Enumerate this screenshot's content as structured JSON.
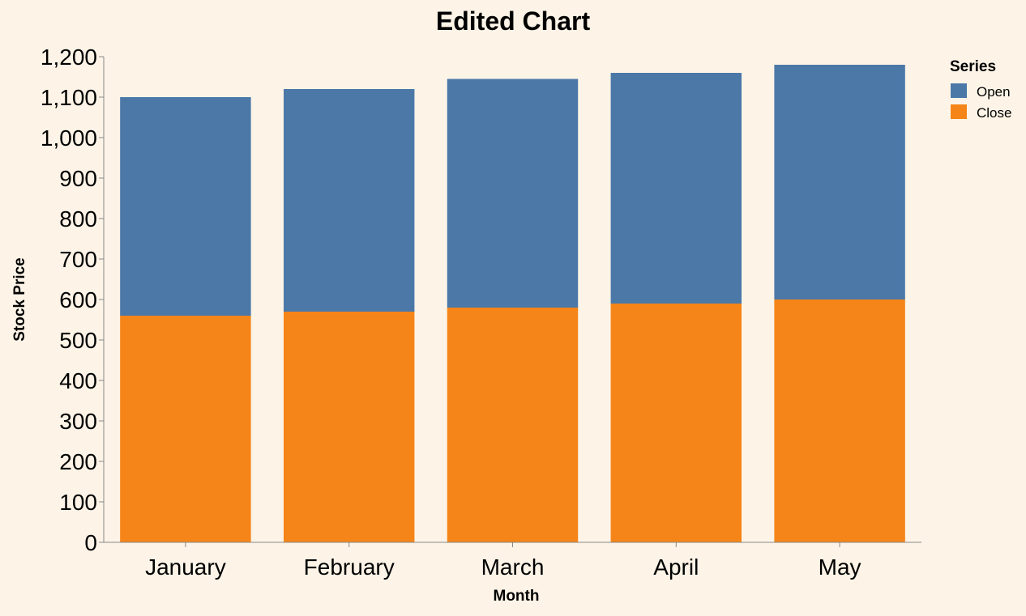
{
  "chart_data": {
    "type": "bar",
    "stacked": true,
    "title": "Edited Chart",
    "xlabel": "Month",
    "ylabel": "Stock Price",
    "categories": [
      "January",
      "February",
      "March",
      "April",
      "May"
    ],
    "series": [
      {
        "name": "Close",
        "values": [
          560,
          570,
          580,
          590,
          600
        ],
        "color": "#f58518"
      },
      {
        "name": "Open",
        "values": [
          540,
          550,
          565,
          570,
          580
        ],
        "color": "#4c78a8"
      }
    ],
    "ylim": [
      0,
      1200
    ],
    "yticks": [
      "0",
      "100",
      "200",
      "300",
      "400",
      "500",
      "600",
      "700",
      "800",
      "900",
      "1,000",
      "1,100",
      "1,200"
    ],
    "ytick_values": [
      0,
      100,
      200,
      300,
      400,
      500,
      600,
      700,
      800,
      900,
      1000,
      1100,
      1200
    ],
    "grid": false,
    "legend": {
      "title": "Series",
      "placement": "right",
      "items": [
        {
          "label": "Open",
          "color": "#4c78a8"
        },
        {
          "label": "Close",
          "color": "#f58518"
        }
      ]
    }
  }
}
